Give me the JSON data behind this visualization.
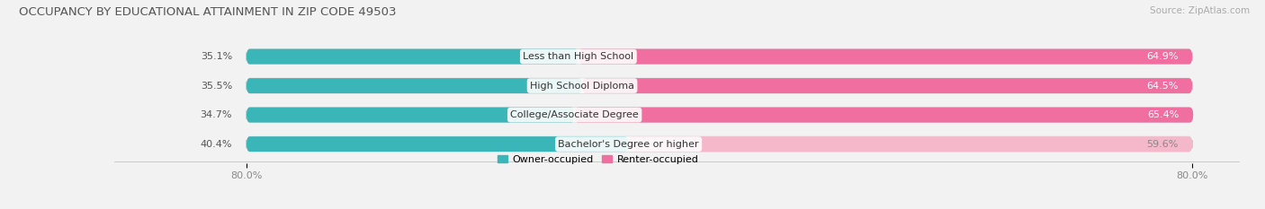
{
  "title": "OCCUPANCY BY EDUCATIONAL ATTAINMENT IN ZIP CODE 49503",
  "source": "Source: ZipAtlas.com",
  "categories": [
    "Less than High School",
    "High School Diploma",
    "College/Associate Degree",
    "Bachelor's Degree or higher"
  ],
  "owner_pct": [
    35.1,
    35.5,
    34.7,
    40.4
  ],
  "renter_pct": [
    64.9,
    64.5,
    65.4,
    59.6
  ],
  "owner_color": "#3ab5b8",
  "renter_colors": [
    "#f06fa0",
    "#f06fa0",
    "#f06fa0",
    "#f5b8ca"
  ],
  "renter_label_colors": [
    "white",
    "white",
    "white",
    "#888888"
  ],
  "background_color": "#f2f2f2",
  "bar_bg_color": "#e6e6e6",
  "title_fontsize": 9.5,
  "source_fontsize": 7.5,
  "label_fontsize": 8,
  "pct_fontsize": 8,
  "tick_fontsize": 8,
  "legend_fontsize": 8,
  "total_width": 100.0,
  "xlim": [
    0,
    100
  ]
}
